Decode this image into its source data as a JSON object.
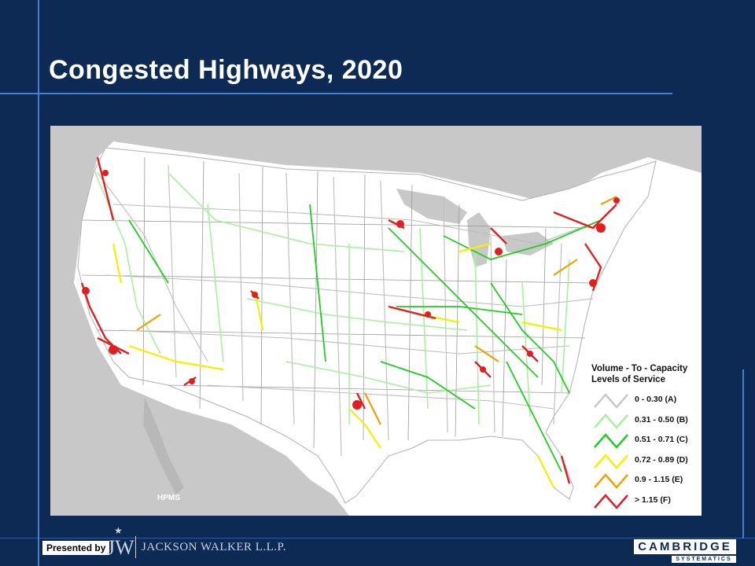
{
  "slide": {
    "title": "Congested Highways, 2020",
    "background_color": "#0d2a55",
    "accent_line_color": "#4a7fd0"
  },
  "map": {
    "land_color": "#ffffff",
    "surrounding_land_color": "#c8c8c8",
    "source_note": "HPMS",
    "legend": {
      "title_line1": "Volume - To - Capacity",
      "title_line2": "Levels of Service",
      "items": [
        {
          "label": "0 - 0.30 (A)",
          "color": "#c8c8c8"
        },
        {
          "label": "0.31 - 0.50 (B)",
          "color": "#a8f0a0"
        },
        {
          "label": "0.51 - 0.71 (C)",
          "color": "#22cc22"
        },
        {
          "label": "0.72 - 0.89 (D)",
          "color": "#f5f000"
        },
        {
          "label": "0.9 - 1.15 (E)",
          "color": "#f0a000"
        },
        {
          "label": "> 1.15 (F)",
          "color": "#e02020"
        }
      ]
    }
  },
  "footer": {
    "presented_by": "Presented by",
    "jw_initials": "JW",
    "jw_name": "JACKSON WALKER L.L.P.",
    "cs_name": "CAMBRIDGE",
    "cs_sub": "SYSTEMATICS"
  }
}
